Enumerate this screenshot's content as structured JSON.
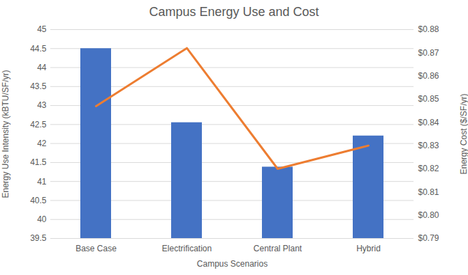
{
  "chart_data": {
    "type": "bar",
    "title": "Campus Energy Use and Cost",
    "x_label": "Campus Scenarios",
    "y_label": "Energy Use Intensity (kBTU/SF/yr)",
    "y2_label": "Energy Cost ($/SF/yr)",
    "categories": [
      "Base Case",
      "Electrification",
      "Central Plant",
      "Hybrid"
    ],
    "series": [
      {
        "type": "bar",
        "color": "#4472c4",
        "values": [
          44.5,
          42.55,
          41.38,
          42.2
        ]
      },
      {
        "type": "line",
        "axis": "y2",
        "color": "#ed7d31",
        "marker": "none",
        "values": [
          0.847,
          0.872,
          0.82,
          0.83
        ]
      }
    ],
    "ylim": [
      39.5,
      45
    ],
    "yticks": [
      39.5,
      40,
      40.5,
      41,
      41.5,
      42,
      42.5,
      43,
      43.5,
      44,
      44.5,
      45
    ],
    "y2lim": [
      0.79,
      0.88
    ],
    "y2ticks": [
      {
        "value": 0.79,
        "label": "$0.79"
      },
      {
        "value": 0.8,
        "label": "$0.80"
      },
      {
        "value": 0.81,
        "label": "$0.81"
      },
      {
        "value": 0.82,
        "label": "$0.82"
      },
      {
        "value": 0.83,
        "label": "$0.83"
      },
      {
        "value": 0.84,
        "label": "$0.84"
      },
      {
        "value": 0.85,
        "label": "$0.85"
      },
      {
        "value": 0.86,
        "label": "$0.86"
      },
      {
        "value": 0.87,
        "label": "$0.87"
      },
      {
        "value": 0.88,
        "label": "$0.88"
      }
    ],
    "grid": true
  }
}
